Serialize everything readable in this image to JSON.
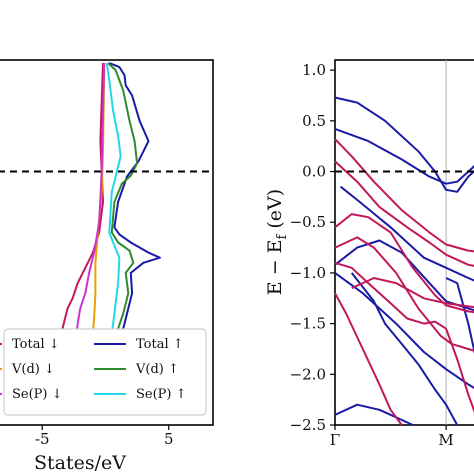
{
  "chart_data": [
    {
      "type": "line",
      "panel": "dos",
      "xlabel": "States/eV",
      "ylabel": "",
      "x_ticks": [
        "-5",
        "5"
      ],
      "x_tick_values": [
        -5,
        5
      ],
      "xlim": [
        -8.5,
        8.5
      ],
      "ylim": [
        -2.5,
        1.1
      ],
      "fermi_line": {
        "y": 0.0,
        "style": "dashed",
        "color": "#000000"
      },
      "legend": {
        "placement": "lower-center",
        "left": [
          {
            "label": "Total ↓",
            "color": "#c2185b"
          },
          {
            "label": "V(d) ↓",
            "color": "#e6a000"
          },
          {
            "label": "Se(P) ↓",
            "color": "#cc33cc"
          }
        ],
        "right": [
          {
            "label": "Total ↑",
            "color": "#1a1aa6"
          },
          {
            "label": "V(d) ↑",
            "color": "#2e8b2e"
          },
          {
            "label": "Se(P) ↑",
            "color": "#22d8e8"
          }
        ]
      },
      "series": [
        {
          "name": "Total ↑",
          "color": "#1a1aa6",
          "points": [
            [
              0.3,
              1.07
            ],
            [
              1.1,
              1.03
            ],
            [
              1.5,
              0.95
            ],
            [
              1.6,
              0.85
            ],
            [
              2.1,
              0.75
            ],
            [
              2.7,
              0.5
            ],
            [
              3.4,
              0.3
            ],
            [
              2.6,
              0.1
            ],
            [
              1.7,
              -0.05
            ],
            [
              1.0,
              -0.3
            ],
            [
              0.7,
              -0.55
            ],
            [
              1.1,
              -0.62
            ],
            [
              2.0,
              -0.7
            ],
            [
              3.4,
              -0.8
            ],
            [
              4.3,
              -0.85
            ],
            [
              3.0,
              -0.9
            ],
            [
              2.0,
              -1.0
            ],
            [
              2.1,
              -1.2
            ],
            [
              1.8,
              -1.35
            ],
            [
              1.5,
              -1.5
            ],
            [
              1.3,
              -1.6
            ]
          ]
        },
        {
          "name": "V(d) ↑",
          "color": "#2e8b2e",
          "points": [
            [
              0.2,
              1.07
            ],
            [
              0.8,
              1.0
            ],
            [
              1.4,
              0.8
            ],
            [
              1.9,
              0.5
            ],
            [
              2.3,
              0.3
            ],
            [
              2.5,
              0.08
            ],
            [
              2.0,
              -0.04
            ],
            [
              1.3,
              -0.12
            ],
            [
              0.7,
              -0.3
            ],
            [
              0.5,
              -0.6
            ],
            [
              1.0,
              -0.7
            ],
            [
              1.9,
              -0.78
            ],
            [
              2.2,
              -0.9
            ],
            [
              1.6,
              -1.0
            ],
            [
              1.8,
              -1.2
            ],
            [
              1.4,
              -1.4
            ],
            [
              1.0,
              -1.55
            ],
            [
              0.8,
              -1.6
            ]
          ]
        },
        {
          "name": "Se(P) ↑",
          "color": "#22d8e8",
          "points": [
            [
              0.1,
              1.07
            ],
            [
              0.3,
              0.9
            ],
            [
              0.6,
              0.6
            ],
            [
              1.0,
              0.35
            ],
            [
              1.2,
              0.15
            ],
            [
              0.9,
              0.0
            ],
            [
              0.5,
              -0.2
            ],
            [
              0.3,
              -0.6
            ],
            [
              0.6,
              -0.7
            ],
            [
              1.1,
              -0.85
            ],
            [
              1.0,
              -1.1
            ],
            [
              0.7,
              -1.4
            ],
            [
              0.5,
              -1.6
            ]
          ]
        },
        {
          "name": "Total ↓",
          "color": "#c2185b",
          "points": [
            [
              -0.2,
              1.07
            ],
            [
              -0.3,
              0.7
            ],
            [
              -0.4,
              0.3
            ],
            [
              -0.3,
              0.0
            ],
            [
              -0.2,
              -0.3
            ],
            [
              -0.5,
              -0.6
            ],
            [
              -1.0,
              -0.8
            ],
            [
              -1.6,
              -0.95
            ],
            [
              -2.2,
              -1.1
            ],
            [
              -2.6,
              -1.25
            ],
            [
              -3.0,
              -1.35
            ],
            [
              -3.2,
              -1.45
            ],
            [
              -3.4,
              -1.55
            ],
            [
              -3.5,
              -1.6
            ]
          ]
        },
        {
          "name": "V(d) ↓",
          "color": "#e6a000",
          "points": [
            [
              -0.1,
              1.07
            ],
            [
              -0.15,
              0.6
            ],
            [
              -0.2,
              0.2
            ],
            [
              -0.3,
              -0.2
            ],
            [
              -0.6,
              -0.6
            ],
            [
              -0.8,
              -0.9
            ],
            [
              -0.8,
              -1.2
            ],
            [
              -0.9,
              -1.45
            ],
            [
              -1.0,
              -1.6
            ]
          ]
        },
        {
          "name": "Se(P) ↓",
          "color": "#cc33cc",
          "points": [
            [
              -0.1,
              1.07
            ],
            [
              -0.2,
              0.6
            ],
            [
              -0.3,
              0.0
            ],
            [
              -0.5,
              -0.5
            ],
            [
              -0.9,
              -0.8
            ],
            [
              -1.3,
              -1.0
            ],
            [
              -1.6,
              -1.2
            ],
            [
              -2.0,
              -1.35
            ],
            [
              -2.2,
              -1.5
            ],
            [
              -2.3,
              -1.6
            ]
          ]
        }
      ]
    },
    {
      "type": "line",
      "panel": "bands",
      "xlabel": "",
      "ylabel": "E − E_f (eV)",
      "ylim": [
        -2.5,
        1.1
      ],
      "y_ticks": [
        "1.0",
        "0.5",
        "0.0",
        "−0.5",
        "−1.0",
        "−1.5",
        "−2.0",
        "−2.5"
      ],
      "y_tick_values": [
        1.0,
        0.5,
        0.0,
        -0.5,
        -1.0,
        -1.5,
        -2.0,
        -2.5
      ],
      "x_ticks": [
        "Γ",
        "M"
      ],
      "x_tick_values": [
        0,
        1
      ],
      "xlim": [
        0,
        1.35
      ],
      "vertical_line": {
        "x": 1,
        "color": "#b0b0b0"
      },
      "fermi_line": {
        "y": 0.0,
        "style": "dashed",
        "color": "#000000"
      },
      "series": [
        {
          "name": "",
          "color": "#1a1aa6",
          "points": [
            [
              0,
              0.73
            ],
            [
              0.2,
              0.68
            ],
            [
              0.45,
              0.5
            ],
            [
              0.75,
              0.2
            ],
            [
              0.9,
              0.0
            ],
            [
              1.0,
              -0.18
            ],
            [
              1.1,
              -0.2
            ],
            [
              1.2,
              -0.05
            ],
            [
              1.35,
              0.1
            ]
          ]
        },
        {
          "name": "",
          "color": "#1a1aa6",
          "points": [
            [
              0,
              0.42
            ],
            [
              0.3,
              0.3
            ],
            [
              0.6,
              0.12
            ],
            [
              0.85,
              -0.05
            ],
            [
              1.0,
              -0.12
            ],
            [
              1.1,
              -0.1
            ],
            [
              1.25,
              0.05
            ],
            [
              1.35,
              0.2
            ]
          ]
        },
        {
          "name": "",
          "color": "#1a1aa6",
          "points": [
            [
              0.05,
              -0.15
            ],
            [
              0.2,
              -0.28
            ],
            [
              0.5,
              -0.55
            ],
            [
              0.8,
              -0.85
            ],
            [
              1.0,
              -0.95
            ],
            [
              1.2,
              -1.05
            ],
            [
              1.35,
              -1.12
            ]
          ]
        },
        {
          "name": "",
          "color": "#1a1aa6",
          "points": [
            [
              0,
              -0.92
            ],
            [
              0.2,
              -0.75
            ],
            [
              0.4,
              -0.68
            ],
            [
              0.6,
              -0.8
            ],
            [
              0.85,
              -1.1
            ],
            [
              1.0,
              -1.28
            ],
            [
              1.2,
              -1.35
            ],
            [
              1.35,
              -1.4
            ]
          ]
        },
        {
          "name": "",
          "color": "#1a1aa6",
          "points": [
            [
              0,
              -1.0
            ],
            [
              0.25,
              -1.2
            ],
            [
              0.55,
              -1.5
            ],
            [
              0.8,
              -1.78
            ],
            [
              1.0,
              -1.95
            ],
            [
              1.2,
              -2.1
            ],
            [
              1.35,
              -2.2
            ]
          ]
        },
        {
          "name": "",
          "color": "#1a1aa6",
          "points": [
            [
              0.15,
              -1.0
            ],
            [
              0.35,
              -1.28
            ],
            [
              0.45,
              -1.5
            ],
            [
              0.6,
              -1.7
            ],
            [
              0.75,
              -1.9
            ],
            [
              0.9,
              -2.15
            ],
            [
              1.0,
              -2.3
            ],
            [
              1.1,
              -2.5
            ]
          ]
        },
        {
          "name": "",
          "color": "#1a1aa6",
          "points": [
            [
              0,
              -2.4
            ],
            [
              0.2,
              -2.3
            ],
            [
              0.4,
              -2.35
            ],
            [
              0.6,
              -2.45
            ],
            [
              0.7,
              -2.5
            ]
          ]
        },
        {
          "name": "",
          "color": "#1a1aa6",
          "points": [
            [
              1.0,
              -1.05
            ],
            [
              1.1,
              -1.1
            ],
            [
              1.2,
              -1.5
            ],
            [
              1.3,
              -2.0
            ],
            [
              1.35,
              -2.5
            ]
          ]
        },
        {
          "name": "",
          "color": "#c2185b",
          "points": [
            [
              0,
              0.32
            ],
            [
              0.15,
              0.15
            ],
            [
              0.35,
              -0.1
            ],
            [
              0.6,
              -0.38
            ],
            [
              0.85,
              -0.6
            ],
            [
              1.0,
              -0.72
            ],
            [
              1.2,
              -0.78
            ],
            [
              1.35,
              -0.8
            ]
          ]
        },
        {
          "name": "",
          "color": "#c2185b",
          "points": [
            [
              0,
              0.1
            ],
            [
              0.2,
              -0.1
            ],
            [
              0.4,
              -0.35
            ],
            [
              0.65,
              -0.55
            ],
            [
              0.85,
              -0.7
            ],
            [
              1.0,
              -0.82
            ],
            [
              1.2,
              -0.92
            ],
            [
              1.35,
              -0.95
            ]
          ]
        },
        {
          "name": "",
          "color": "#c2185b",
          "points": [
            [
              0,
              -0.55
            ],
            [
              0.15,
              -0.42
            ],
            [
              0.3,
              -0.45
            ],
            [
              0.5,
              -0.6
            ],
            [
              0.7,
              -0.95
            ],
            [
              0.9,
              -1.22
            ],
            [
              1.0,
              -1.32
            ],
            [
              1.2,
              -1.38
            ],
            [
              1.35,
              -1.4
            ]
          ]
        },
        {
          "name": "",
          "color": "#c2185b",
          "points": [
            [
              0,
              -0.75
            ],
            [
              0.2,
              -0.65
            ],
            [
              0.35,
              -0.75
            ],
            [
              0.55,
              -1.0
            ],
            [
              0.75,
              -1.35
            ],
            [
              0.95,
              -1.62
            ],
            [
              1.05,
              -1.7
            ],
            [
              1.2,
              -1.75
            ],
            [
              1.35,
              -1.8
            ]
          ]
        },
        {
          "name": "",
          "color": "#c2185b",
          "points": [
            [
              0,
              -0.9
            ],
            [
              0.15,
              -0.95
            ],
            [
              0.3,
              -1.1
            ],
            [
              0.5,
              -1.3
            ],
            [
              0.65,
              -1.45
            ],
            [
              0.8,
              -1.5
            ],
            [
              0.9,
              -1.48
            ],
            [
              1.0,
              -1.55
            ],
            [
              1.1,
              -1.85
            ],
            [
              1.2,
              -2.2
            ],
            [
              1.3,
              -2.5
            ]
          ]
        },
        {
          "name": "",
          "color": "#c2185b",
          "points": [
            [
              0,
              -1.2
            ],
            [
              0.1,
              -1.4
            ],
            [
              0.25,
              -1.75
            ],
            [
              0.4,
              -2.1
            ],
            [
              0.5,
              -2.35
            ],
            [
              0.6,
              -2.5
            ]
          ]
        },
        {
          "name": "",
          "color": "#c2185b",
          "points": [
            [
              0.15,
              -1.15
            ],
            [
              0.25,
              -1.1
            ],
            [
              0.35,
              -1.05
            ],
            [
              0.55,
              -1.1
            ],
            [
              0.8,
              -1.25
            ],
            [
              1.0,
              -1.3
            ],
            [
              1.2,
              -1.33
            ],
            [
              1.35,
              -1.35
            ]
          ]
        }
      ]
    }
  ]
}
